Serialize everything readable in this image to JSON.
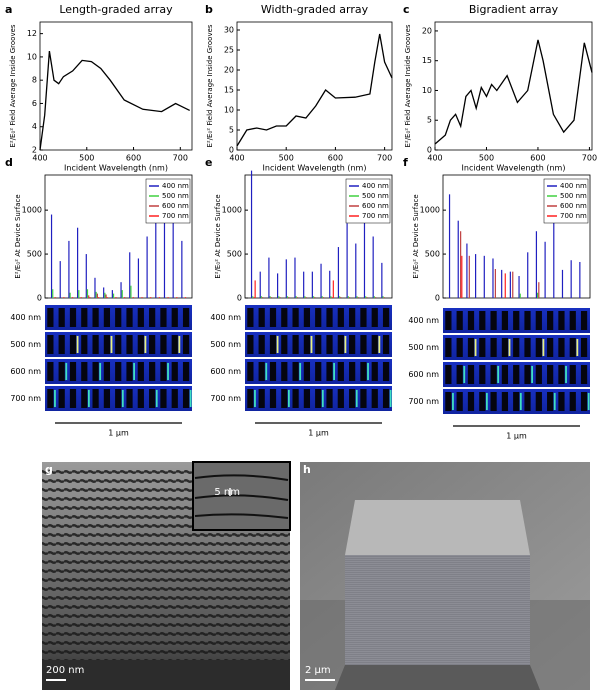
{
  "chart_data": [
    {
      "type": "line",
      "panel": "a",
      "title": "Length-graded array",
      "xlabel": "Incident Wavelength (nm)",
      "ylabel": "E²/E₀² Field Average Inside Grooves",
      "x": [
        400,
        410,
        420,
        430,
        440,
        450,
        470,
        490,
        510,
        530,
        550,
        580,
        620,
        660,
        690,
        700,
        720
      ],
      "values": [
        2,
        5,
        10.5,
        8,
        7.7,
        8.3,
        8.8,
        9.7,
        9.6,
        9,
        8,
        6.3,
        5.5,
        5.3,
        6,
        5.8,
        5.4
      ],
      "color": "#000000",
      "xlim": [
        400,
        725
      ],
      "xticks": [
        400,
        500,
        600,
        700
      ],
      "ylim": [
        2,
        13
      ],
      "yticks": [
        2,
        4,
        6,
        8,
        10,
        12
      ]
    },
    {
      "type": "line",
      "panel": "b",
      "title": "Width-graded array",
      "xlabel": "Incident Wavelength (nm)",
      "ylabel": "E²/E₀² Field Average Inside Grooves",
      "x": [
        400,
        410,
        420,
        440,
        460,
        480,
        500,
        520,
        540,
        560,
        580,
        600,
        640,
        670,
        680,
        690,
        700,
        715
      ],
      "values": [
        1,
        3,
        5,
        5.5,
        5,
        6,
        6,
        8.5,
        8,
        11,
        15,
        13,
        13.2,
        14,
        22,
        29,
        22,
        18
      ],
      "color": "#000000",
      "xlim": [
        400,
        715
      ],
      "xticks": [
        400,
        500,
        600,
        700
      ],
      "ylim": [
        0,
        32
      ],
      "yticks": [
        0,
        5,
        10,
        15,
        20,
        25,
        30
      ]
    },
    {
      "type": "line",
      "panel": "c",
      "title": "Bigradient array",
      "xlabel": "Incident Wavelength (nm)",
      "ylabel": "E²/E₀² Field Average Inside Grooves",
      "x": [
        400,
        420,
        430,
        440,
        450,
        460,
        470,
        480,
        490,
        500,
        510,
        520,
        540,
        560,
        580,
        600,
        610,
        630,
        650,
        670,
        690,
        705
      ],
      "values": [
        1,
        2.5,
        5,
        6,
        4,
        9,
        10,
        7,
        10.5,
        9,
        11,
        10,
        12.5,
        8,
        10,
        18.5,
        15,
        6,
        3,
        5,
        18,
        13
      ],
      "color": "#000000",
      "xlim": [
        400,
        705
      ],
      "xticks": [
        400,
        500,
        600,
        700
      ],
      "ylim": [
        0,
        21.5
      ],
      "yticks": [
        0,
        5,
        10,
        15,
        20
      ]
    },
    {
      "type": "spike",
      "panel": "d",
      "ylabel": "E²/E₀² At Device Surface",
      "categories": [
        null,
        null,
        null,
        null,
        null,
        null,
        null,
        null,
        null,
        null,
        null,
        null,
        null,
        null,
        null,
        null
      ],
      "series": [
        {
          "name": "400 nm",
          "color": "#2020c0",
          "values": [
            950,
            420,
            650,
            800,
            500,
            230,
            120,
            90,
            180,
            520,
            450,
            700,
            980,
            1000,
            960,
            650
          ]
        },
        {
          "name": "500 nm",
          "color": "#40d040",
          "values": [
            100,
            0,
            60,
            90,
            100,
            70,
            60,
            50,
            90,
            140,
            0,
            0,
            0,
            0,
            0,
            0
          ]
        },
        {
          "name": "600 nm",
          "color": "#c04040",
          "values": [
            0,
            0,
            0,
            0,
            30,
            50,
            40,
            0,
            0,
            0,
            0,
            0,
            0,
            0,
            0,
            0
          ]
        },
        {
          "name": "700 nm",
          "color": "#ff2020",
          "values": [
            10,
            10,
            10,
            10,
            10,
            10,
            10,
            10,
            10,
            10,
            10,
            10,
            10,
            10,
            10,
            10
          ]
        }
      ],
      "ylim": [
        0,
        1400
      ],
      "yticks": [
        0,
        500,
        1000
      ],
      "map_rows": [
        "400 nm",
        "500 nm",
        "600 nm",
        "700 nm"
      ],
      "scale_bar": "1 µm"
    },
    {
      "type": "spike",
      "panel": "e",
      "ylabel": "E²/E₀² At Device Surface",
      "categories": [
        null,
        null,
        null,
        null,
        null,
        null,
        null,
        null,
        null,
        null,
        null,
        null,
        null,
        null,
        null,
        null
      ],
      "series": [
        {
          "name": "400 nm",
          "color": "#2020c0",
          "values": [
            1450,
            300,
            460,
            280,
            440,
            460,
            300,
            300,
            390,
            310,
            580,
            850,
            620,
            1000,
            700,
            400
          ]
        },
        {
          "name": "500 nm",
          "color": "#40d040",
          "values": [
            20,
            20,
            20,
            20,
            20,
            20,
            20,
            20,
            20,
            20,
            20,
            20,
            20,
            20,
            20,
            20
          ]
        },
        {
          "name": "600 nm",
          "color": "#c04040",
          "values": [
            10,
            10,
            10,
            10,
            10,
            10,
            10,
            10,
            10,
            10,
            10,
            10,
            10,
            10,
            10,
            10
          ]
        },
        {
          "name": "700 nm",
          "color": "#ff2020",
          "values": [
            200,
            0,
            0,
            0,
            0,
            0,
            0,
            0,
            0,
            200,
            0,
            0,
            0,
            0,
            0,
            0
          ]
        }
      ],
      "ylim": [
        0,
        1400
      ],
      "yticks": [
        0,
        500,
        1000
      ],
      "map_rows": [
        "400 nm",
        "500 nm",
        "600 nm",
        "700 nm"
      ],
      "scale_bar": "1 µm"
    },
    {
      "type": "spike",
      "panel": "f",
      "ylabel": "E²/E₀² At Device Surface",
      "categories": [
        null,
        null,
        null,
        null,
        null,
        null,
        null,
        null,
        null,
        null,
        null,
        null,
        null,
        null,
        null,
        null
      ],
      "series": [
        {
          "name": "400 nm",
          "color": "#2020c0",
          "values": [
            1180,
            880,
            620,
            500,
            480,
            450,
            320,
            300,
            250,
            520,
            760,
            640,
            1000,
            320,
            430,
            410
          ]
        },
        {
          "name": "500 nm",
          "color": "#40d040",
          "values": [
            0,
            0,
            0,
            0,
            0,
            0,
            0,
            0,
            50,
            0,
            60,
            0,
            0,
            0,
            0,
            0
          ]
        },
        {
          "name": "600 nm",
          "color": "#c04040",
          "values": [
            0,
            760,
            480,
            0,
            0,
            330,
            0,
            300,
            0,
            0,
            180,
            0,
            0,
            0,
            0,
            0
          ]
        },
        {
          "name": "700 nm",
          "color": "#ff2020",
          "values": [
            0,
            480,
            0,
            0,
            0,
            0,
            280,
            0,
            0,
            0,
            0,
            0,
            0,
            0,
            0,
            0
          ]
        }
      ],
      "ylim": [
        0,
        1400
      ],
      "yticks": [
        0,
        500,
        1000
      ],
      "map_rows": [
        "400 nm",
        "500 nm",
        "600 nm",
        "700 nm"
      ],
      "scale_bar": "1 µm"
    }
  ],
  "images": [
    {
      "panel": "g",
      "inset_label": "5 nm",
      "scale_bar": "200 nm"
    },
    {
      "panel": "h",
      "scale_bar": "2 µm"
    }
  ]
}
